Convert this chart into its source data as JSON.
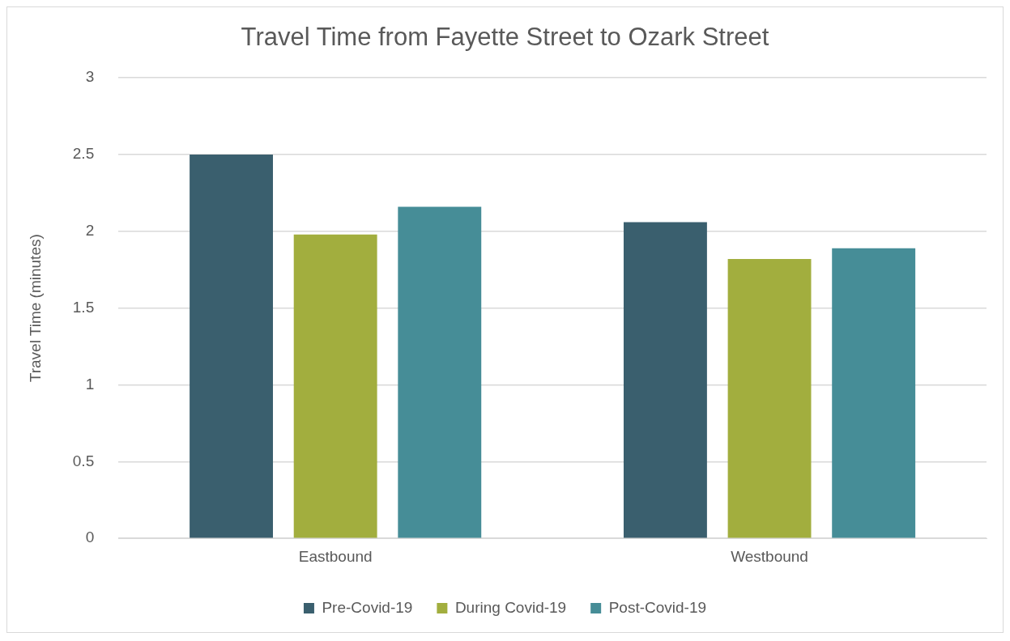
{
  "chart_data": {
    "type": "bar",
    "title": "Travel Time from Fayette Street to Ozark Street",
    "ylabel": "Travel Time (minutes)",
    "categories": [
      "Eastbound",
      "Westbound"
    ],
    "series": [
      {
        "name": "Pre-Covid-19",
        "color": "#3a5f6e",
        "values": [
          2.5,
          2.06
        ]
      },
      {
        "name": "During Covid-19",
        "color": "#a2ae3e",
        "values": [
          1.98,
          1.82
        ]
      },
      {
        "name": "Post-Covid-19",
        "color": "#468d97",
        "values": [
          2.16,
          1.89
        ]
      }
    ],
    "ylim": [
      0,
      3
    ],
    "yticks": [
      0,
      0.5,
      1,
      1.5,
      2,
      2.5,
      3
    ],
    "grid": "y",
    "legend": "bottom"
  }
}
